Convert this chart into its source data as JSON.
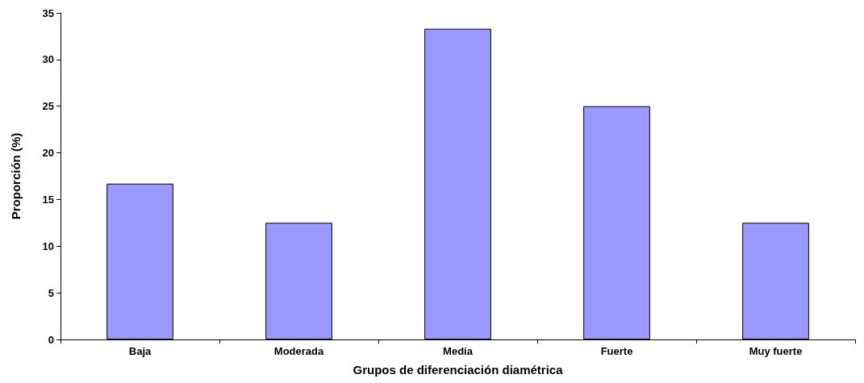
{
  "chart_data": {
    "type": "bar",
    "xlabel": "Grupos de diferenciación diamétrica",
    "ylabel": "Proporción (%)",
    "categories": [
      "Baja",
      "Moderada",
      "Media",
      "Fuerte",
      "Muy fuerte"
    ],
    "values": [
      16.7,
      12.5,
      33.3,
      25,
      12.5
    ],
    "color": "#9999ff",
    "ylim": [
      0,
      35
    ],
    "yticks": [
      0,
      5,
      10,
      15,
      20,
      25,
      30,
      35
    ],
    "grid": false
  }
}
